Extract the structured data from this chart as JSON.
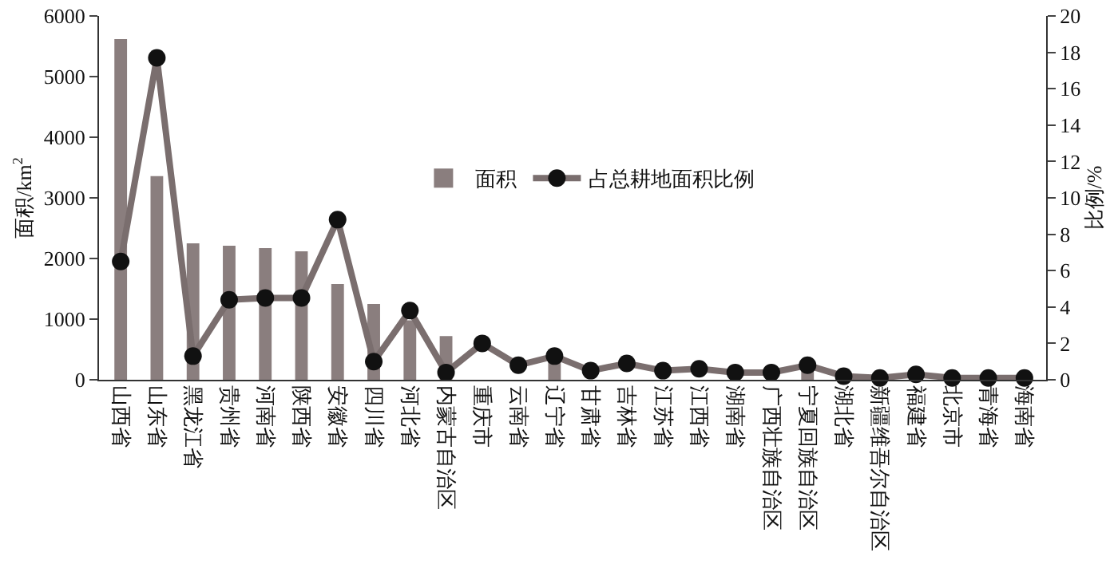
{
  "chart_data": {
    "type": "bar",
    "categories": [
      "山西省",
      "山东省",
      "黑龙江省",
      "贵州省",
      "河南省",
      "陕西省",
      "安徽省",
      "四川省",
      "河北省",
      "内蒙古自治区",
      "重庆市",
      "云南省",
      "辽宁省",
      "甘肃省",
      "吉林省",
      "江苏省",
      "江西省",
      "湖南省",
      "广西壮族自治区",
      "宁夏回族自治区",
      "湖北省",
      "新疆维吾尔自治区",
      "福建省",
      "北京市",
      "青海省",
      "海南省"
    ],
    "series": [
      {
        "name": "面积",
        "color": "#8a7e7e",
        "values": [
          5620,
          3360,
          2250,
          2210,
          2170,
          2120,
          1580,
          1250,
          980,
          720,
          null,
          null,
          500,
          null,
          null,
          null,
          null,
          null,
          null,
          150,
          null,
          null,
          null,
          null,
          null,
          null
        ]
      },
      {
        "name": "占总耕地面积比例",
        "type": "line",
        "axis": "y2",
        "color": "#7a6e6e",
        "marker": "circle",
        "values": [
          6.5,
          17.7,
          1.3,
          4.4,
          4.5,
          4.5,
          8.8,
          1.0,
          3.8,
          0.4,
          2.0,
          0.8,
          1.3,
          0.5,
          0.9,
          0.5,
          0.6,
          0.4,
          0.4,
          0.8,
          0.2,
          0.1,
          0.3,
          0.1,
          0.1,
          0.1
        ]
      }
    ],
    "ylabel": "面积/km$^{2}$",
    "y2label": "比例/%",
    "ylim": [
      0,
      6000
    ],
    "yticks": [
      0,
      1000,
      2000,
      3000,
      4000,
      5000,
      6000
    ],
    "y2lim": [
      0,
      20
    ],
    "y2ticks": [
      0,
      2,
      4,
      6,
      8,
      10,
      12,
      14,
      16,
      18,
      20
    ],
    "grid": false,
    "legend": "top",
    "line_style": "solid"
  }
}
